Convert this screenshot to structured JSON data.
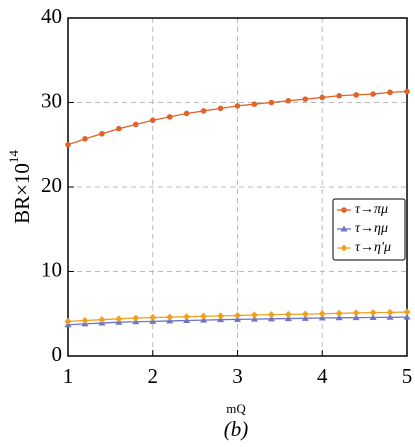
{
  "chart_data": {
    "type": "line",
    "ylabel": "BR×10",
    "ylabel_superscript": "14",
    "xlabel": "mQ",
    "caption": "(b)",
    "x": [
      1,
      1.2,
      1.4,
      1.6,
      1.8,
      2,
      2.2,
      2.4,
      2.6,
      2.8,
      3,
      3.2,
      3.4,
      3.6,
      3.8,
      4,
      4.2,
      4.4,
      4.6,
      4.8,
      5
    ],
    "series": [
      {
        "name": "τ→πμ",
        "color": "#e0632a",
        "marker": "circle",
        "values": [
          25.0,
          25.7,
          26.3,
          26.9,
          27.4,
          27.9,
          28.3,
          28.7,
          29.0,
          29.3,
          29.6,
          29.8,
          30.0,
          30.2,
          30.4,
          30.6,
          30.8,
          30.9,
          31.0,
          31.2,
          31.3
        ]
      },
      {
        "name": "τ→ημ",
        "color": "#6f74c4",
        "marker": "triangle",
        "values": [
          3.7,
          3.8,
          3.9,
          4.0,
          4.05,
          4.1,
          4.15,
          4.2,
          4.25,
          4.3,
          4.33,
          4.36,
          4.4,
          4.43,
          4.46,
          4.5,
          4.52,
          4.54,
          4.56,
          4.58,
          4.6
        ]
      },
      {
        "name": "τ→η'μ",
        "color": "#f0a020",
        "marker": "diamond",
        "values": [
          4.1,
          4.2,
          4.3,
          4.4,
          4.5,
          4.55,
          4.6,
          4.65,
          4.7,
          4.75,
          4.8,
          4.85,
          4.9,
          4.93,
          4.96,
          5.0,
          5.05,
          5.1,
          5.13,
          5.16,
          5.2
        ]
      }
    ],
    "xlim": [
      1,
      5
    ],
    "xticks": [
      1,
      2,
      3,
      4,
      5
    ],
    "ylim": [
      0,
      40
    ],
    "yticks": [
      0,
      10,
      20,
      30,
      40
    ],
    "grid": true,
    "legend": "right"
  }
}
